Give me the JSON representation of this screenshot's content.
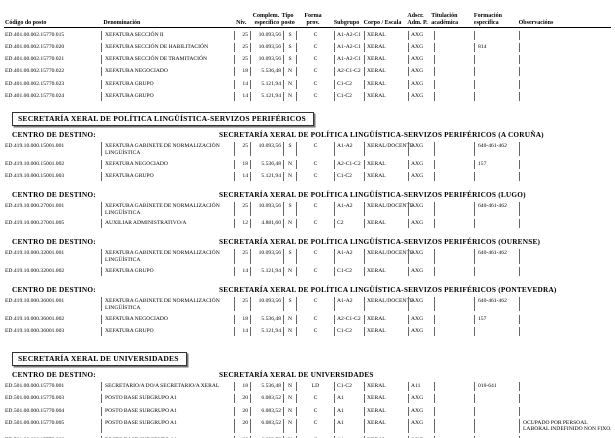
{
  "document": {
    "header_columns": [
      {
        "line1": "",
        "line2": "Código do posto"
      },
      {
        "line1": "",
        "line2": "Denominación"
      },
      {
        "line1": "",
        "line2": "Niv."
      },
      {
        "line1": "Complem.",
        "line2": "específico"
      },
      {
        "line1": "Tipo",
        "line2": "posto"
      },
      {
        "line1": "Forma",
        "line2": "prov."
      },
      {
        "line1": "",
        "line2": "Subgrupo"
      },
      {
        "line1": "",
        "line2": "Corpo / Escala"
      },
      {
        "line1": "Adscr.",
        "line2": "Adm. P."
      },
      {
        "line1": "Titulación",
        "line2": "académica"
      },
      {
        "line1": "Formación",
        "line2": "específica"
      },
      {
        "line1": "",
        "line2": "Observacións"
      }
    ],
    "blocks": [
      {
        "type": "rows",
        "rows": [
          [
            "ED.401.00.002.15770.015",
            "XEFATURA SECCIÓN II",
            "25",
            "10.093,56",
            "S",
            "C",
            "A1-A2-C1",
            "XERAL",
            "AXG",
            "",
            "",
            ""
          ],
          [
            "ED.401.00.002.15770.020",
            "XEFATURA SECCIÓN DE HABILITACIÓN",
            "25",
            "10.093,56",
            "S",
            "C",
            "A1-A2-C1",
            "XERAL",
            "AXG",
            "",
            "814",
            ""
          ],
          [
            "ED.401.00.002.15770.021",
            "XEFATURA SECCIÓN DE TRAMITACIÓN",
            "25",
            "10.093,56",
            "S",
            "C",
            "A1-A2-C1",
            "XERAL",
            "AXG",
            "",
            "",
            ""
          ],
          [
            "ED.401.00.002.15770.022",
            "XEFATURA NEGOCIADO",
            "18",
            "5.536,48",
            "N",
            "C",
            "A2-C1-C2",
            "XERAL",
            "AXG",
            "",
            "",
            ""
          ],
          [
            "ED.401.00.002.15770.023",
            "XEFATURA GRUPO",
            "14",
            "5.121,94",
            "N",
            "C",
            "C1-C2",
            "XERAL",
            "AXG",
            "",
            "",
            ""
          ],
          [
            "ED.401.00.002.15770.024",
            "XEFATURA GRUPO",
            "14",
            "5.121,94",
            "N",
            "C",
            "C1-C2",
            "XERAL",
            "AXG",
            "",
            "",
            ""
          ]
        ]
      },
      {
        "type": "section",
        "title": "SECRETARÍA XERAL DE POLÍTICA LINGÜÍSTICA-SERVIZOS PERIFÉRICOS"
      },
      {
        "type": "centro",
        "label": "CENTRO DE DESTINO:",
        "name": "SECRETARÍA XERAL DE POLÍTICA LINGÜÍSTICA-SERVIZOS PERIFÉRICOS (A CORUÑA)",
        "rows": [
          [
            "ED.419.10.000.15001.001",
            "XEFATURA GABINETE DE NORMALIZACIÓN LINGÜÍSTICA",
            "25",
            "10.093,56",
            "S",
            "C",
            "A1-A2",
            "XERAL/DOCENTE",
            "AXG",
            "",
            "640-461-462",
            ""
          ],
          [
            "ED.419.10.000.15001.002",
            "XEFATURA NEGOCIADO",
            "18",
            "5.536,48",
            "N",
            "C",
            "A2-C1-C2",
            "XERAL",
            "AXG",
            "",
            "157",
            ""
          ],
          [
            "ED.419.10.000.15001.003",
            "XEFATURA GRUPO",
            "14",
            "5.121,94",
            "N",
            "C",
            "C1-C2",
            "XERAL",
            "AXG",
            "",
            "",
            ""
          ]
        ]
      },
      {
        "type": "centro",
        "label": "CENTRO DE DESTINO:",
        "name": "SECRETARÍA XERAL DE POLÍTICA LINGÜÍSTICA-SERVIZOS PERIFÉRICOS (LUGO)",
        "rows": [
          [
            "ED.419.10.000.27001.001",
            "XEFATURA GABINETE DE NORMALIZACIÓN LINGÜÍSTICA",
            "25",
            "10.093,56",
            "S",
            "C",
            "A1-A2",
            "XERAL/DOCENTE",
            "AXG",
            "",
            "640-461-462",
            ""
          ],
          [
            "ED.419.10.000.27001.005",
            "AUXILIAR ADMINISTRATIVO/A",
            "12",
            "4.881,60",
            "N",
            "C",
            "C2",
            "XERAL",
            "AXG",
            "",
            "",
            ""
          ]
        ]
      },
      {
        "type": "centro",
        "label": "CENTRO DE DESTINO:",
        "name": "SECRETARÍA XERAL DE POLÍTICA LINGÜÍSTICA-SERVIZOS PERIFÉRICOS (OURENSE)",
        "rows": [
          [
            "ED.419.10.000.32001.001",
            "XEFATURA GABINETE DE NORMALIZACIÓN LINGÜÍSTICA",
            "25",
            "10.093,56",
            "S",
            "C",
            "A1-A2",
            "XERAL/DOCENTE",
            "AXG",
            "",
            "640-461-462",
            ""
          ],
          [
            "ED.419.10.000.32001.002",
            "XEFATURA GRUPO",
            "14",
            "5.121,94",
            "N",
            "C",
            "C1-C2",
            "XERAL",
            "AXG",
            "",
            "",
            ""
          ]
        ]
      },
      {
        "type": "centro",
        "label": "CENTRO DE DESTINO:",
        "name": "SECRETARÍA XERAL DE POLÍTICA LINGÜÍSTICA-SERVIZOS PERIFÉRICOS (PONTEVEDRA)",
        "rows": [
          [
            "ED.419.10.000.36001.001",
            "XEFATURA GABINETE DE NORMALIZACIÓN LINGÜÍSTICA",
            "25",
            "10.093,56",
            "S",
            "C",
            "A1-A2",
            "XERAL/DOCENTE",
            "AXG",
            "",
            "640-461-462",
            ""
          ],
          [
            "ED.419.10.000.36001.002",
            "XEFATURA NEGOCIADO",
            "18",
            "5.536,48",
            "N",
            "C",
            "A2-C1-C2",
            "XERAL",
            "AXG",
            "",
            "157",
            ""
          ],
          [
            "ED.419.10.000.36001.003",
            "XEFATURA GRUPO",
            "14",
            "5.121,94",
            "N",
            "C",
            "C1-C2",
            "XERAL",
            "AXG",
            "",
            "",
            ""
          ]
        ]
      },
      {
        "type": "section",
        "title": "SECRETARÍA XERAL DE UNIVERSIDADES",
        "extra_gap": true
      },
      {
        "type": "centro",
        "label": "CENTRO DE DESTINO:",
        "name": "SECRETARÍA XERAL DE UNIVERSIDADES",
        "rows": [
          [
            "ED.501.00.000.15770.001",
            "SECRETARIO/A DO/A SECRETARIO/A XERAL",
            "18",
            "5.536,48",
            "N",
            "LD",
            "C1-C2",
            "XERAL",
            "A11",
            "",
            "010-641",
            ""
          ],
          [
            "ED.501.00.000.15770.003",
            "POSTO BASE SUBGRUPO A1",
            "20",
            "6.083,52",
            "N",
            "C",
            "A1",
            "XERAL",
            "AXG",
            "",
            "",
            ""
          ],
          [
            "ED.501.00.000.15770.004",
            "POSTO BASE SUBGRUPO A1",
            "20",
            "6.083,52",
            "N",
            "C",
            "A1",
            "XERAL",
            "AXG",
            "",
            "",
            ""
          ],
          [
            "ED.501.00.000.15770.005",
            "POSTO BASE SUBGRUPO A1",
            "20",
            "6.083,52",
            "N",
            "C",
            "A1",
            "XERAL",
            "AXG",
            "",
            "",
            "OCUPADO POR PERSOAL LABORAL INDEFINIDO NON FIXO."
          ],
          [
            "ED.501.00.000.15770.006",
            "POSTO BASE SUBGRUPO A1",
            "20",
            "6.083,52",
            "N",
            "C",
            "A1",
            "XERAL",
            "AXG",
            "",
            "",
            ""
          ],
          [
            "ED.501.00.000.15770.008",
            "AUXILIAR ADMINISTRATIVO/A",
            "12",
            "4.881,60",
            "N",
            "C",
            "C2",
            "XERAL",
            "A11",
            "",
            "641",
            ""
          ]
        ]
      }
    ],
    "column_keys": [
      "codigo",
      "denominacion",
      "niv",
      "complemento",
      "tipo",
      "forma",
      "subgrupo",
      "corpo",
      "adscricion",
      "titulacion",
      "formacion",
      "observacions"
    ]
  }
}
